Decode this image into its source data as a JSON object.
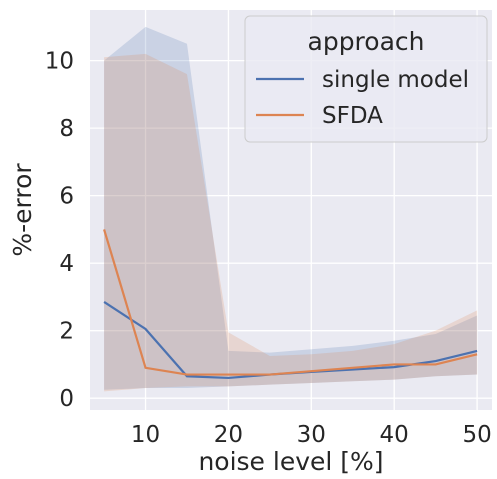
{
  "chart_data": {
    "type": "line",
    "xlabel": "noise level [%]",
    "ylabel": "%-error",
    "xlim": [
      3.3,
      51.8
    ],
    "ylim": [
      -0.35,
      11.5
    ],
    "xticks": [
      10,
      20,
      30,
      40,
      50
    ],
    "yticks": [
      0,
      2,
      4,
      6,
      8,
      10
    ],
    "grid": true,
    "legend": {
      "title": "approach",
      "placement": "top-right"
    },
    "x": [
      5,
      10,
      15,
      20,
      25,
      30,
      35,
      40,
      45,
      50
    ],
    "series": [
      {
        "name": "single model",
        "color": "#4c72b0",
        "values": [
          2.85,
          2.05,
          0.65,
          0.6,
          0.7,
          0.78,
          0.85,
          0.92,
          1.1,
          1.4
        ],
        "lower": [
          0.25,
          0.3,
          0.3,
          0.35,
          0.4,
          0.45,
          0.5,
          0.55,
          0.65,
          0.7
        ],
        "upper": [
          10.0,
          11.0,
          10.5,
          1.4,
          1.35,
          1.45,
          1.55,
          1.7,
          1.9,
          2.45
        ]
      },
      {
        "name": "SFDA",
        "color": "#dd8452",
        "values": [
          5.0,
          0.9,
          0.7,
          0.7,
          0.7,
          0.8,
          0.9,
          1.0,
          1.0,
          1.3
        ],
        "lower": [
          0.2,
          0.3,
          0.35,
          0.35,
          0.4,
          0.45,
          0.5,
          0.55,
          0.65,
          0.7
        ],
        "upper": [
          10.1,
          10.2,
          9.6,
          1.95,
          1.25,
          1.3,
          1.4,
          1.6,
          2.0,
          2.6
        ]
      }
    ]
  }
}
